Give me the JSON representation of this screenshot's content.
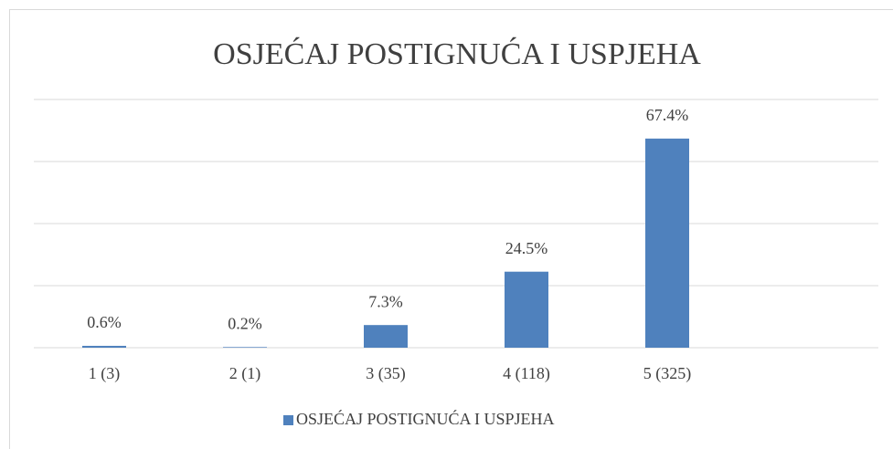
{
  "chart_data": {
    "type": "bar",
    "title": "OSJEĆAJ POSTIGNUĆA I USPJEHA",
    "categories": [
      "1 (3)",
      "2 (1)",
      "3 (35)",
      "4 (118)",
      "5 (325)",
      null
    ],
    "series": [
      {
        "name": "OSJEĆAJ POSTIGNUĆA I USPJEHA",
        "color": "#4f81bd",
        "values": [
          0.6,
          0.2,
          7.3,
          24.5,
          67.4,
          null
        ],
        "value_labels": [
          "0.6%",
          "0.2%",
          "7.3%",
          "24.5%",
          "67.4%",
          null
        ]
      }
    ],
    "ylim": [
      0,
      80
    ],
    "yticks": [
      0,
      20,
      40,
      60,
      80
    ],
    "grid": true,
    "legend": "bottom"
  }
}
